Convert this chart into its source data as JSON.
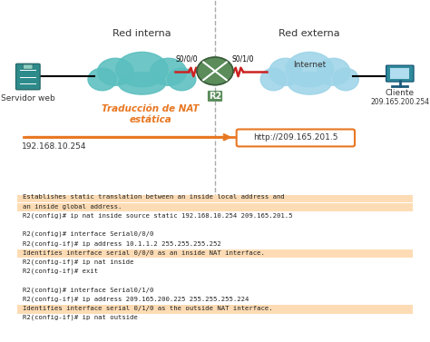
{
  "title_left": "Red interna",
  "title_right": "Red externa",
  "nat_label": "Traducción de NAT\nestática",
  "nat_label_color": "#E87722",
  "ip_left": "192.168.10.254",
  "ip_right_box": "http://209.165.201.5",
  "ip_right_client": "209.165.200.254",
  "label_servidor": "Servidor web",
  "label_cliente": "Cliente",
  "label_internet": "Internet",
  "label_r2": "R2",
  "label_s000": "S0/0/0",
  "label_s010": "S0/1/0",
  "terminal_lines": [
    {
      "text": "Establishes static translation between an inside local address and",
      "highlight": true
    },
    {
      "text": "an inside global address.",
      "highlight": true
    },
    {
      "text": "R2(config)# ip nat inside source static 192.168.10.254 209.165.201.5",
      "highlight": false
    },
    {
      "text": "",
      "highlight": false
    },
    {
      "text": "R2(config)# interface Serial0/0/0",
      "highlight": false
    },
    {
      "text": "R2(config-if)# ip address 10.1.1.2 255.255.255.252",
      "highlight": false
    },
    {
      "text": "Identifies interface serial 0/0/0 as an inside NAT interface.",
      "highlight": true
    },
    {
      "text": "R2(config-if)# ip nat inside",
      "highlight": false
    },
    {
      "text": "R2(config-if)# exit",
      "highlight": false
    },
    {
      "text": "",
      "highlight": false
    },
    {
      "text": "R2(config)# interface Serial0/1/0",
      "highlight": false
    },
    {
      "text": "R2(config-if)# ip address 209.165.200.225 255.255.255.224",
      "highlight": false
    },
    {
      "text": "Identifies interface serial 0/1/0 as the outside NAT interface.",
      "highlight": true
    },
    {
      "text": "R2(config-if)# ip nat outside",
      "highlight": false
    }
  ],
  "highlight_color": "#FDDCB5",
  "terminal_bg": "#FFFFFF",
  "terminal_border": "#CCCCCC",
  "background_color": "#FFFFFF",
  "cloud_color_left": "#5BBFBF",
  "cloud_color_right": "#9DD4E8",
  "server_color": "#2E8B8B",
  "router_color": "#5B8C5A",
  "arrow_color": "#E87722",
  "dashed_line_color": "#888888"
}
